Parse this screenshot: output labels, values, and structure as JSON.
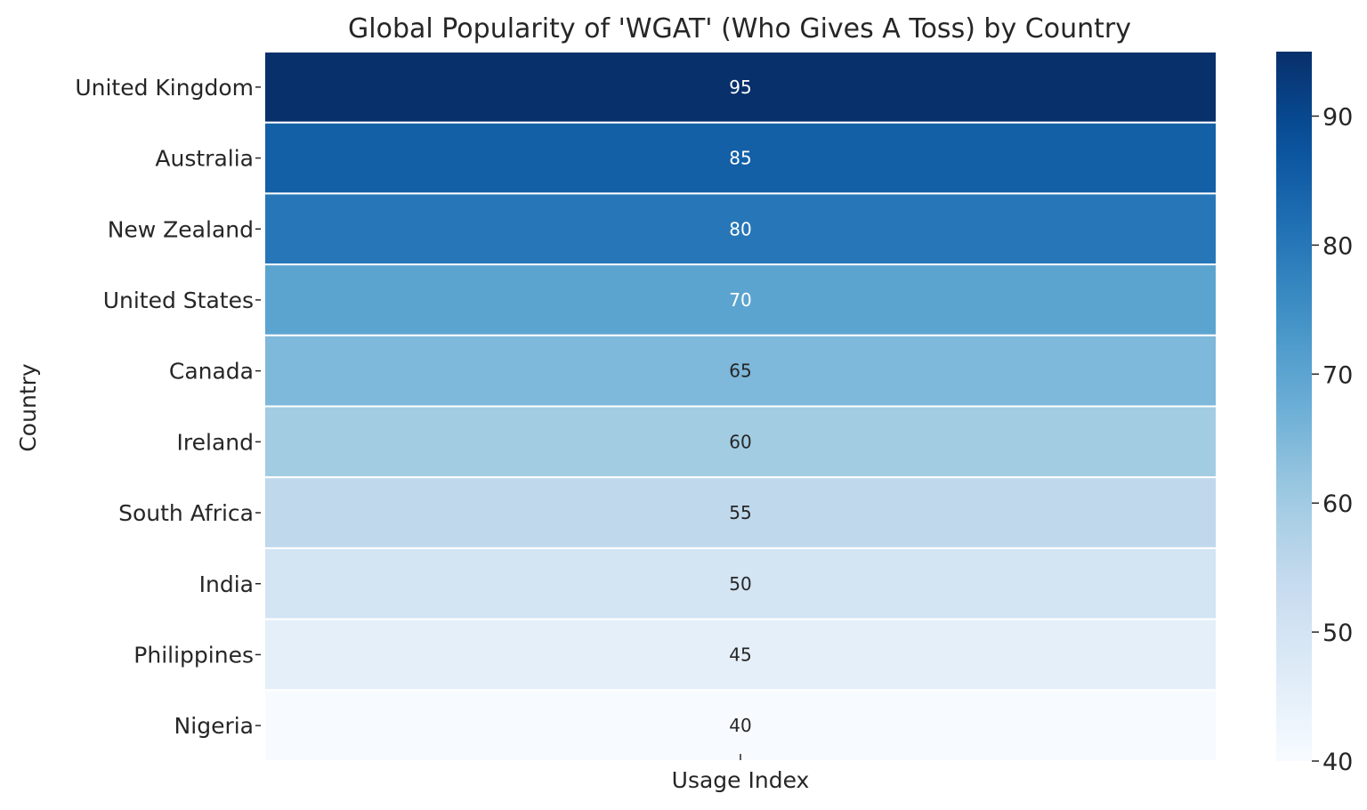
{
  "chart_data": {
    "type": "heatmap",
    "title": "Global Popularity of 'WGAT' (Who Gives A Toss) by Country",
    "xlabel": "",
    "ylabel": "Country",
    "columns": [
      "Usage Index"
    ],
    "rows": [
      "United Kingdom",
      "Australia",
      "New Zealand",
      "United States",
      "Canada",
      "Ireland",
      "South Africa",
      "India",
      "Philippines",
      "Nigeria"
    ],
    "values": [
      95,
      85,
      80,
      70,
      65,
      60,
      55,
      50,
      45,
      40
    ],
    "colorbar": {
      "colormap": "Blues",
      "range": [
        40,
        95
      ],
      "ticks": [
        40,
        50,
        60,
        70,
        80,
        90
      ]
    },
    "colors": {
      "low": "#f7fbff",
      "high": "#08306b",
      "dark_text": "#262626",
      "light_text": "#ffffff"
    }
  }
}
